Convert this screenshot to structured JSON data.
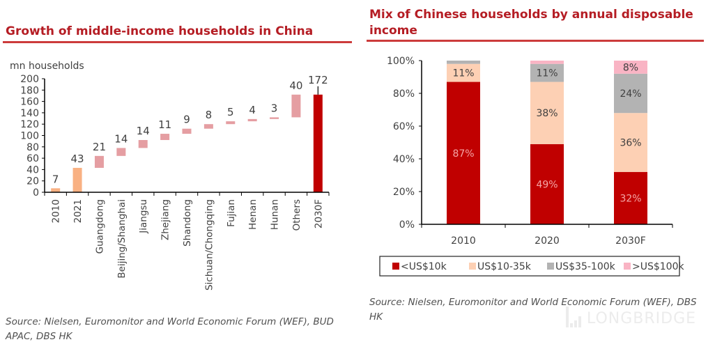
{
  "left_panel": {
    "title": "Growth of middle-income households in China",
    "source": "Source: Nielsen, Euromonitor and World Economic Forum (WEF), BUD APAC, DBS HK"
  },
  "right_panel": {
    "title_line1": "Mix of Chinese households by annual disposable",
    "title_line2": "income",
    "source": "Source: Nielsen, Euromonitor and World Economic Forum (WEF), DBS HK"
  },
  "watermark": "LONGBRIDGE",
  "chart_data": [
    {
      "type": "bar",
      "subtype": "waterfall",
      "title": "Growth of middle-income households in China",
      "ylabel": "mn households",
      "xlabel": "",
      "ylim": [
        0,
        200
      ],
      "yticks": [
        "0",
        "20",
        "40",
        "60",
        "80",
        "100",
        "120",
        "140",
        "160",
        "180",
        "200"
      ],
      "grid": false,
      "categories": [
        "2010",
        "2021",
        "Guangdong",
        "Beijing/Shanghai",
        "Jiangsu",
        "Zhejiang",
        "Shandong",
        "Sichuan/Chongqing",
        "Fujian",
        "Henan",
        "Hunan",
        "Others",
        "2030F"
      ],
      "values": [
        7,
        43,
        21,
        14,
        14,
        11,
        9,
        8,
        5,
        4,
        3,
        40,
        172
      ],
      "kinds": [
        "total",
        "total",
        "delta",
        "delta",
        "delta",
        "delta",
        "delta",
        "delta",
        "delta",
        "delta",
        "delta",
        "delta",
        "total"
      ],
      "data_labels": [
        "7",
        "43",
        "21",
        "14",
        "14",
        "11",
        "9",
        "8",
        "5",
        "4",
        "3",
        "40",
        "172"
      ],
      "colors": {
        "base": "#f9b183",
        "delta": "#e59ea2",
        "final": "#c00000"
      }
    },
    {
      "type": "bar",
      "subtype": "stacked-100",
      "title": "Mix of Chinese households by annual disposable income",
      "xlabel": "",
      "ylabel": "",
      "ylim": [
        0,
        100
      ],
      "yticks": [
        "0%",
        "20%",
        "40%",
        "60%",
        "80%",
        "100%"
      ],
      "grid": false,
      "legend_position": "bottom",
      "categories": [
        "2010",
        "2020",
        "2030F"
      ],
      "series": [
        {
          "name": "<US$10k",
          "values": [
            87,
            49,
            32
          ],
          "labels": [
            "87%",
            "49%",
            "32%"
          ],
          "color": "#c00000",
          "label_color": "#f4a6a6"
        },
        {
          "name": "US$10-35k",
          "values": [
            11,
            38,
            36
          ],
          "labels": [
            "11%",
            "38%",
            "36%"
          ],
          "color": "#fdd0b4",
          "label_color": "#404040"
        },
        {
          "name": "US$35-100k",
          "values": [
            2,
            11,
            24
          ],
          "labels": [
            "",
            "11%",
            "24%"
          ],
          "color": "#b3b3b3",
          "label_color": "#404040"
        },
        {
          "name": ">US$100k",
          "values": [
            0,
            2,
            8
          ],
          "labels": [
            "",
            "",
            "8%"
          ],
          "color": "#f9b4c4",
          "label_color": "#404040"
        }
      ]
    }
  ]
}
